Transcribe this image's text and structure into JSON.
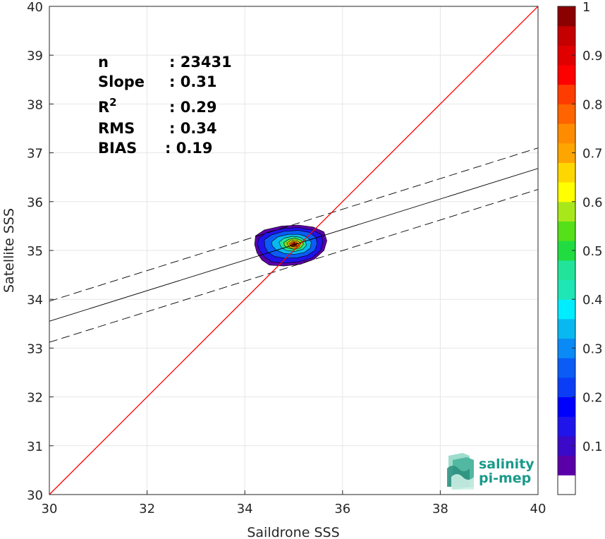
{
  "chart_data": {
    "type": "heatmap",
    "xlabel": "Saildrone SSS",
    "ylabel": "Satellite SSS",
    "xlim": [
      30,
      40
    ],
    "ylim": [
      30,
      40
    ],
    "x_ticks": [
      30,
      32,
      34,
      36,
      38,
      40
    ],
    "y_ticks": [
      30,
      31,
      32,
      33,
      34,
      35,
      36,
      37,
      38,
      39,
      40
    ],
    "grid": true,
    "one_to_one_line": {
      "x": [
        30,
        40
      ],
      "y": [
        30,
        40
      ],
      "color": "#ff0000"
    },
    "regression_line": {
      "x": [
        30,
        40
      ],
      "y": [
        33.55,
        36.68
      ],
      "style": "solid",
      "color": "#000000"
    },
    "upper_bound_line": {
      "x": [
        30,
        40
      ],
      "y": [
        33.96,
        37.1
      ],
      "style": "dashed",
      "color": "#000000"
    },
    "lower_bound_line": {
      "x": [
        30,
        40
      ],
      "y": [
        33.12,
        36.25
      ],
      "style": "dashed",
      "color": "#000000"
    },
    "density_peak": {
      "x": 35.0,
      "y": 35.12
    },
    "density_contours": [
      {
        "level": 0.05,
        "color": "#5a00a8",
        "points": [
          [
            34.22,
            35.3
          ],
          [
            34.4,
            35.42
          ],
          [
            34.75,
            35.5
          ],
          [
            35.1,
            35.52
          ],
          [
            35.4,
            35.48
          ],
          [
            35.62,
            35.38
          ],
          [
            35.68,
            35.2
          ],
          [
            35.62,
            35.0
          ],
          [
            35.42,
            34.82
          ],
          [
            35.15,
            34.72
          ],
          [
            34.8,
            34.68
          ],
          [
            34.5,
            34.7
          ],
          [
            34.35,
            34.8
          ],
          [
            34.25,
            34.95
          ],
          [
            34.2,
            35.12
          ]
        ]
      },
      {
        "level": 0.15,
        "color": "#1f14ea",
        "points": [
          [
            34.28,
            35.25
          ],
          [
            34.45,
            35.37
          ],
          [
            34.78,
            35.45
          ],
          [
            35.1,
            35.47
          ],
          [
            35.38,
            35.42
          ],
          [
            35.56,
            35.33
          ],
          [
            35.6,
            35.18
          ],
          [
            35.55,
            35.0
          ],
          [
            35.38,
            34.85
          ],
          [
            35.12,
            34.77
          ],
          [
            34.8,
            34.74
          ],
          [
            34.55,
            34.77
          ],
          [
            34.4,
            34.87
          ],
          [
            34.3,
            35.0
          ],
          [
            34.26,
            35.13
          ]
        ]
      },
      {
        "level": 0.25,
        "color": "#0a5cf5",
        "points": [
          [
            34.4,
            35.22
          ],
          [
            34.55,
            35.32
          ],
          [
            34.8,
            35.39
          ],
          [
            35.1,
            35.41
          ],
          [
            35.32,
            35.37
          ],
          [
            35.45,
            35.27
          ],
          [
            35.48,
            35.14
          ],
          [
            35.43,
            35.0
          ],
          [
            35.28,
            34.9
          ],
          [
            35.08,
            34.85
          ],
          [
            34.82,
            34.84
          ],
          [
            34.6,
            34.88
          ],
          [
            34.47,
            34.97
          ],
          [
            34.41,
            35.08
          ]
        ]
      },
      {
        "level": 0.35,
        "color": "#08b8f0",
        "points": [
          [
            34.55,
            35.18
          ],
          [
            34.68,
            35.28
          ],
          [
            34.9,
            35.33
          ],
          [
            35.12,
            35.33
          ],
          [
            35.28,
            35.27
          ],
          [
            35.36,
            35.17
          ],
          [
            35.34,
            35.05
          ],
          [
            35.22,
            34.96
          ],
          [
            35.02,
            34.92
          ],
          [
            34.8,
            34.94
          ],
          [
            34.64,
            35.01
          ],
          [
            34.56,
            35.1
          ]
        ]
      },
      {
        "level": 0.45,
        "color": "#22e39a",
        "points": [
          [
            34.7,
            35.17
          ],
          [
            34.8,
            35.25
          ],
          [
            34.97,
            35.29
          ],
          [
            35.13,
            35.27
          ],
          [
            35.24,
            35.2
          ],
          [
            35.26,
            35.1
          ],
          [
            35.18,
            35.02
          ],
          [
            35.02,
            34.98
          ],
          [
            34.85,
            35.0
          ],
          [
            34.74,
            35.07
          ]
        ]
      },
      {
        "level": 0.55,
        "color": "#7fe01a",
        "points": [
          [
            34.8,
            35.16
          ],
          [
            34.9,
            35.23
          ],
          [
            35.03,
            35.25
          ],
          [
            35.15,
            35.21
          ],
          [
            35.2,
            35.13
          ],
          [
            35.14,
            35.05
          ],
          [
            35.01,
            35.02
          ],
          [
            34.88,
            35.05
          ],
          [
            34.81,
            35.1
          ]
        ]
      },
      {
        "level": 0.65,
        "color": "#ffd700",
        "points": [
          [
            34.86,
            35.15
          ],
          [
            34.95,
            35.21
          ],
          [
            35.05,
            35.21
          ],
          [
            35.13,
            35.16
          ],
          [
            35.12,
            35.08
          ],
          [
            35.03,
            35.04
          ],
          [
            34.92,
            35.06
          ]
        ]
      },
      {
        "level": 0.75,
        "color": "#ff8c00",
        "points": [
          [
            34.9,
            35.14
          ],
          [
            34.98,
            35.19
          ],
          [
            35.06,
            35.18
          ],
          [
            35.1,
            35.12
          ],
          [
            35.04,
            35.07
          ],
          [
            34.95,
            35.08
          ]
        ]
      },
      {
        "level": 0.85,
        "color": "#ff2a00",
        "points": [
          [
            34.94,
            35.13
          ],
          [
            35.0,
            35.17
          ],
          [
            35.06,
            35.15
          ],
          [
            35.06,
            35.1
          ],
          [
            35.0,
            35.08
          ],
          [
            34.95,
            35.09
          ]
        ]
      },
      {
        "level": 0.95,
        "color": "#b00000",
        "points": [
          [
            34.97,
            35.12
          ],
          [
            35.01,
            35.15
          ],
          [
            35.04,
            35.13
          ],
          [
            35.03,
            35.1
          ],
          [
            34.99,
            35.1
          ]
        ]
      }
    ],
    "colorbar": {
      "range": [
        0,
        1
      ],
      "ticks": [
        0.1,
        0.2,
        0.3,
        0.4,
        0.5,
        0.6,
        0.7,
        0.8,
        0.9,
        1
      ],
      "tick_labels": [
        "0.1",
        "0.2",
        "0.3",
        "0.4",
        "0.5",
        "0.6",
        "0.7",
        "0.8",
        "0.9",
        "1"
      ],
      "colors": [
        "#ffffff",
        "#5a00a8",
        "#3a0ac8",
        "#1f14ea",
        "#0000ff",
        "#0a3df5",
        "#0a5cf5",
        "#0a8af5",
        "#08b8f0",
        "#00ecff",
        "#1ee6b4",
        "#22e39a",
        "#20dc40",
        "#55e01a",
        "#a8e81a",
        "#ffff00",
        "#ffd700",
        "#ffa500",
        "#ff8c00",
        "#ff6400",
        "#ff3c00",
        "#ff0000",
        "#e00000",
        "#c40000",
        "#8b0000"
      ]
    }
  },
  "stats": [
    {
      "label": "n",
      "value": ": 23431"
    },
    {
      "label": "Slope",
      "value": ": 0.31"
    },
    {
      "label": "R",
      "sup": "2",
      "value": ": 0.29"
    },
    {
      "label": "RMS",
      "value": ": 0.34"
    },
    {
      "label": "BIAS",
      "value": ": 0.19"
    }
  ],
  "logo": {
    "line1": "salinity",
    "line2": "pi-mep"
  },
  "colors": {
    "grid": "#e6e6e6",
    "axis": "#262626",
    "one_to_one": "#ff0000",
    "logo": "#1a9a8a"
  }
}
